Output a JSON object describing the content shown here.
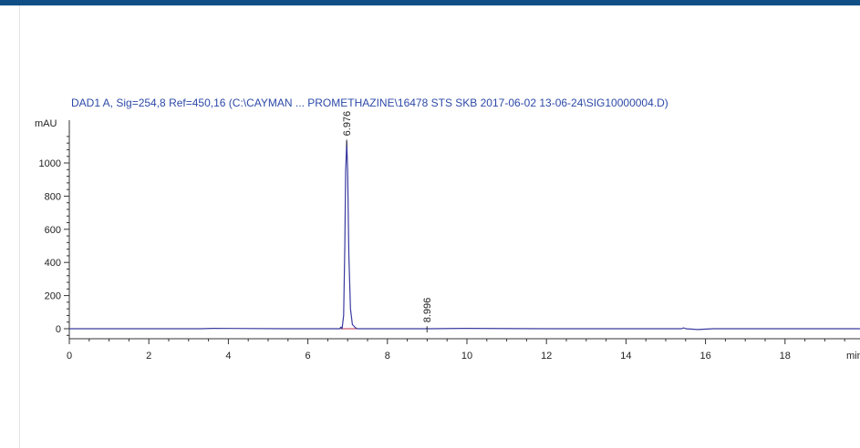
{
  "chart_data": {
    "type": "line",
    "title": "DAD1 A, Sig=254,8 Ref=450,16 (C:\\CAYMAN ... PROMETHAZINE\\16478 STS SKB 2017-06-02 13-06-24\\SIG10000004.D)",
    "ylabel": "mAU",
    "xlabel": "min",
    "xlim": [
      0,
      20
    ],
    "ylim": [
      -30,
      1250
    ],
    "x_ticks": [
      0,
      2,
      4,
      6,
      8,
      10,
      12,
      14,
      16,
      18
    ],
    "x_tick_labels": [
      "0",
      "2",
      "4",
      "6",
      "8",
      "10",
      "12",
      "14",
      "16",
      "18"
    ],
    "y_ticks": [
      0,
      200,
      400,
      600,
      800,
      1000
    ],
    "y_tick_labels": [
      "0",
      "200",
      "400",
      "600",
      "800",
      "1000"
    ],
    "peaks": [
      {
        "label": "6.976",
        "rt": 6.976,
        "height": 1130
      },
      {
        "label": "8.996",
        "rt": 8.996,
        "height": 4
      }
    ],
    "series": [
      {
        "color": "#3a3aa0",
        "x": [
          0,
          1.5,
          3.3,
          3.6,
          5.5,
          6.8,
          6.83,
          6.86,
          6.9,
          6.93,
          6.95,
          6.976,
          7.0,
          7.03,
          7.07,
          7.12,
          7.2,
          7.25,
          7.3,
          8.0,
          8.98,
          8.996,
          9.02,
          10.0,
          12.0,
          14.0,
          15.4,
          15.45,
          15.5,
          15.8,
          16.2,
          17.0,
          18.0,
          20.0
        ],
        "y": [
          0,
          0,
          0,
          2,
          0,
          0,
          10,
          0,
          80,
          500,
          950,
          1130,
          950,
          450,
          120,
          25,
          5,
          0,
          0,
          0,
          0,
          4,
          0,
          2,
          0,
          0,
          0,
          5,
          0,
          -5,
          0,
          0,
          0,
          0
        ]
      }
    ],
    "baseline": {
      "color": "#c0304a",
      "x": [
        6.82,
        7.3
      ],
      "y": [
        0,
        0
      ]
    },
    "grid": false,
    "legend": "none"
  },
  "colors": {
    "header_bar": "#0f4f86",
    "title": "#2d4aa8",
    "axis": "#333333"
  }
}
